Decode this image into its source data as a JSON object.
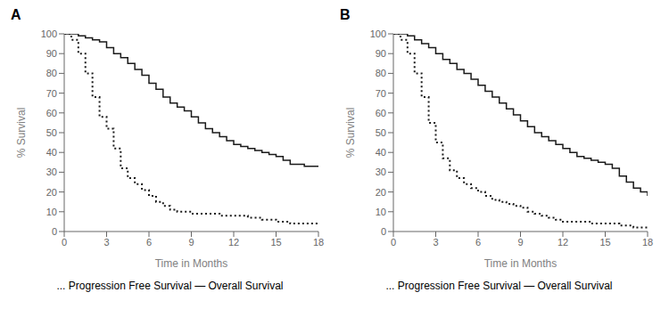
{
  "chart_data": [
    {
      "type": "step",
      "title": "A",
      "xlabel": "Time in Months",
      "ylabel": "% Survival",
      "annotation": "... Progression Free Survival — Overall Survival",
      "xlim": [
        0,
        18
      ],
      "ylim": [
        0,
        100
      ],
      "xticks": [
        0,
        3,
        6,
        9,
        12,
        15,
        18
      ],
      "yticks": [
        0,
        10,
        20,
        30,
        40,
        50,
        60,
        70,
        80,
        90,
        100
      ],
      "grid": false,
      "series": [
        {
          "name": "Overall Survival",
          "color": "#1a1a1a",
          "line_style": "solid",
          "x": [
            0,
            0.5,
            1.0,
            1.5,
            2.0,
            2.5,
            3.0,
            3.5,
            4.0,
            4.5,
            5.0,
            5.5,
            6.0,
            6.5,
            7.0,
            7.5,
            8.0,
            8.5,
            9.0,
            9.5,
            10.0,
            10.5,
            11.0,
            11.5,
            12.0,
            12.5,
            13.0,
            13.5,
            14.0,
            14.5,
            15.0,
            15.5,
            16.0,
            17.0,
            18.0
          ],
          "values": [
            100,
            100,
            99,
            98,
            97,
            96,
            93,
            90,
            88,
            85,
            82,
            79,
            75,
            72,
            68,
            65,
            63,
            61,
            58,
            55,
            52,
            50,
            48,
            46,
            44,
            43,
            42,
            41,
            40,
            39,
            38,
            36,
            34,
            33,
            33
          ]
        },
        {
          "name": "Progression Free Survival",
          "color": "#1a1a1a",
          "line_style": "dotted",
          "x": [
            0,
            0.5,
            1.0,
            1.5,
            2.0,
            2.5,
            3.0,
            3.5,
            4.0,
            4.5,
            5.0,
            5.5,
            6.0,
            6.5,
            7.0,
            7.5,
            8.0,
            9.0,
            10.0,
            11.0,
            12.0,
            13.0,
            14.0,
            15.0,
            16.0,
            17.0,
            18.0
          ],
          "values": [
            100,
            97,
            90,
            80,
            68,
            58,
            52,
            42,
            32,
            27,
            24,
            21,
            18,
            15,
            13,
            11,
            10,
            9,
            9,
            8,
            8,
            7,
            6,
            5,
            4,
            4,
            4
          ]
        }
      ]
    },
    {
      "type": "step",
      "title": "B",
      "xlabel": "Time in Months",
      "ylabel": "% Survival",
      "annotation": "... Progression Free Survival — Overall Survival",
      "xlim": [
        0,
        18
      ],
      "ylim": [
        0,
        100
      ],
      "xticks": [
        0,
        3,
        6,
        9,
        12,
        15,
        18
      ],
      "yticks": [
        0,
        10,
        20,
        30,
        40,
        50,
        60,
        70,
        80,
        90,
        100
      ],
      "grid": false,
      "series": [
        {
          "name": "Overall Survival",
          "color": "#1a1a1a",
          "line_style": "solid",
          "x": [
            0,
            0.5,
            1.0,
            1.5,
            2.0,
            2.5,
            3.0,
            3.5,
            4.0,
            4.5,
            5.0,
            5.5,
            6.0,
            6.5,
            7.0,
            7.5,
            8.0,
            8.5,
            9.0,
            9.5,
            10.0,
            10.5,
            11.0,
            11.5,
            12.0,
            12.5,
            13.0,
            13.5,
            14.0,
            14.5,
            15.0,
            15.5,
            16.0,
            16.5,
            17.0,
            17.5,
            18.0
          ],
          "values": [
            100,
            100,
            99,
            97,
            95,
            93,
            90,
            87,
            85,
            82,
            80,
            77,
            74,
            71,
            68,
            65,
            62,
            59,
            56,
            53,
            50,
            48,
            46,
            44,
            42,
            40,
            38,
            37,
            36,
            35,
            34,
            32,
            28,
            25,
            22,
            20,
            18
          ]
        },
        {
          "name": "Progression Free Survival",
          "color": "#1a1a1a",
          "line_style": "dotted",
          "x": [
            0,
            0.5,
            1.0,
            1.5,
            2.0,
            2.5,
            3.0,
            3.5,
            4.0,
            4.5,
            5.0,
            5.5,
            6.0,
            6.5,
            7.0,
            7.5,
            8.0,
            8.5,
            9.0,
            9.5,
            10.0,
            10.5,
            11.0,
            11.5,
            12.0,
            13.0,
            14.0,
            15.0,
            16.0,
            17.0,
            18.0
          ],
          "values": [
            100,
            97,
            90,
            80,
            68,
            55,
            45,
            37,
            31,
            27,
            24,
            22,
            20,
            18,
            16,
            15,
            14,
            13,
            12,
            10,
            9,
            8,
            7,
            6,
            5,
            5,
            4,
            4,
            3,
            2,
            2
          ]
        }
      ]
    }
  ]
}
